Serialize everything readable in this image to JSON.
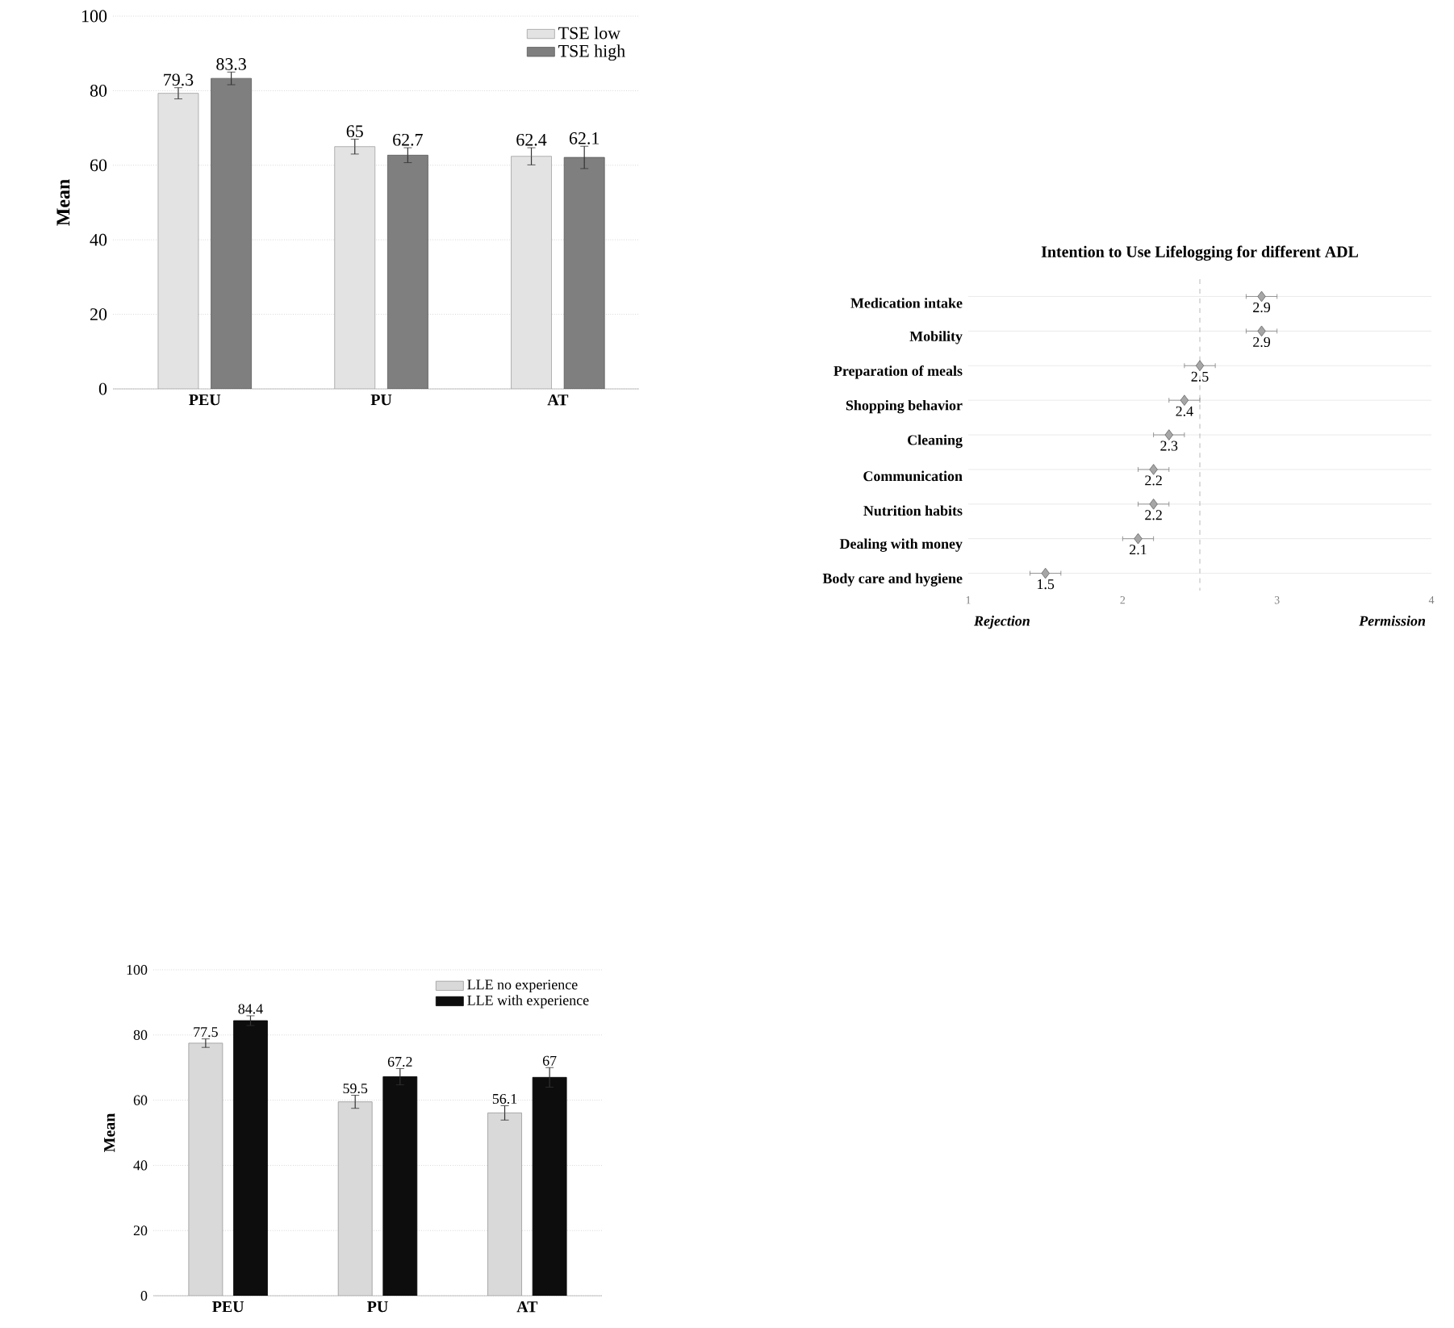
{
  "chart_data": [
    {
      "type": "bar",
      "ylabel": "Mean",
      "categories": [
        "PEU",
        "PU",
        "AT"
      ],
      "series": [
        {
          "name": "TSE low",
          "color": "#e3e3e3",
          "values": [
            79.3,
            65,
            62.4
          ],
          "errors": [
            1.5,
            2,
            2.3
          ]
        },
        {
          "name": "TSE high",
          "color": "#7f7f7f",
          "values": [
            83.3,
            62.7,
            62.1
          ],
          "errors": [
            1.7,
            2,
            3
          ]
        }
      ],
      "ylim": [
        0,
        100
      ],
      "yticks": [
        0,
        20,
        40,
        60,
        80,
        100
      ],
      "grid": "y",
      "legend": "top right",
      "data_labels": true
    },
    {
      "type": "scatter",
      "orientation": "horizontal",
      "title": "Intention to Use Lifelogging for different ADL",
      "categories": [
        "Medication intake",
        "Mobility",
        "Preparation of meals",
        "Shopping behavior",
        "Cleaning",
        "Communication",
        "Nutrition habits",
        "Dealing with money",
        "Body care and hygiene"
      ],
      "values": [
        2.9,
        2.9,
        2.5,
        2.4,
        2.3,
        2.2,
        2.2,
        2.1,
        1.5
      ],
      "errors": [
        0.1,
        0.1,
        0.1,
        0.1,
        0.1,
        0.1,
        0.1,
        0.1,
        0.1
      ],
      "color": "#a6a6a6",
      "marker": "diamond",
      "xlim": [
        1,
        4
      ],
      "xticks": [
        1,
        2,
        3,
        4
      ],
      "grid": "y",
      "data_labels": true,
      "ref_lines": [
        {
          "axis": "x",
          "value": 2.5,
          "color": "#a6a6a6",
          "line_style": "dashed"
        }
      ],
      "annotations": [
        "Rejection",
        "Permission"
      ]
    },
    {
      "type": "bar",
      "ylabel": "Mean",
      "categories": [
        "PEU",
        "PU",
        "AT"
      ],
      "series": [
        {
          "name": "LLE no experience",
          "color": "#d9d9d9",
          "values": [
            77.5,
            59.5,
            56.1
          ],
          "errors": [
            1.3,
            2,
            2.2
          ]
        },
        {
          "name": "LLE with experience",
          "color": "#0d0d0d",
          "values": [
            84.4,
            67.2,
            67
          ],
          "errors": [
            1.5,
            2.5,
            3
          ]
        }
      ],
      "ylim": [
        0,
        100
      ],
      "yticks": [
        0,
        20,
        40,
        60,
        80,
        100
      ],
      "grid": "y",
      "legend": "top right",
      "data_labels": true
    }
  ]
}
